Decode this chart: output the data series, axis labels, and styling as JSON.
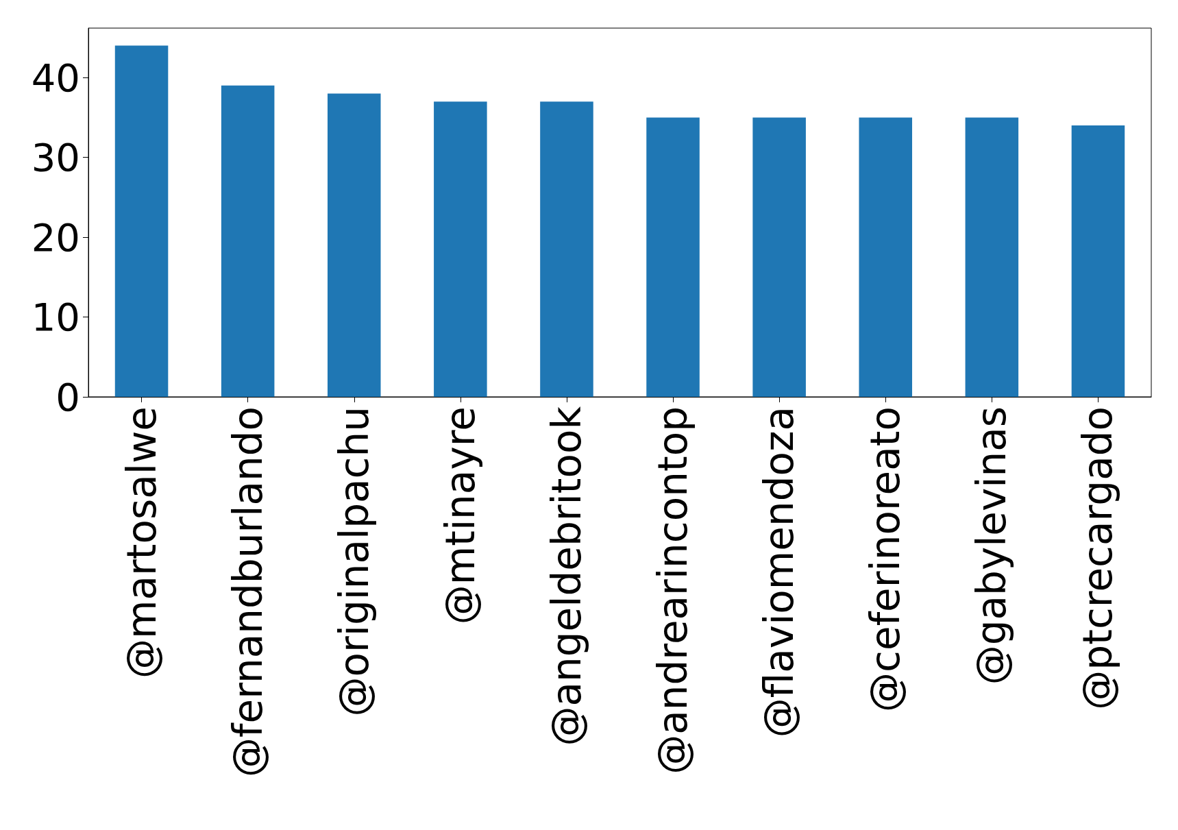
{
  "chart_data": {
    "type": "bar",
    "categories": [
      "@martosalwe",
      "@fernandburlando",
      "@originalpachu",
      "@mtinayre",
      "@angeldebritook",
      "@andrearincontop",
      "@flaviomendoza",
      "@ceferinoreato",
      "@gabylevinas",
      "@ptcrecargado"
    ],
    "values": [
      44,
      39,
      38,
      37,
      37,
      35,
      35,
      35,
      35,
      34
    ],
    "color": "#1f77b4",
    "ylim": [
      0,
      46.2
    ],
    "yticks": [
      0,
      10,
      20,
      30,
      40
    ],
    "grid": false
  }
}
